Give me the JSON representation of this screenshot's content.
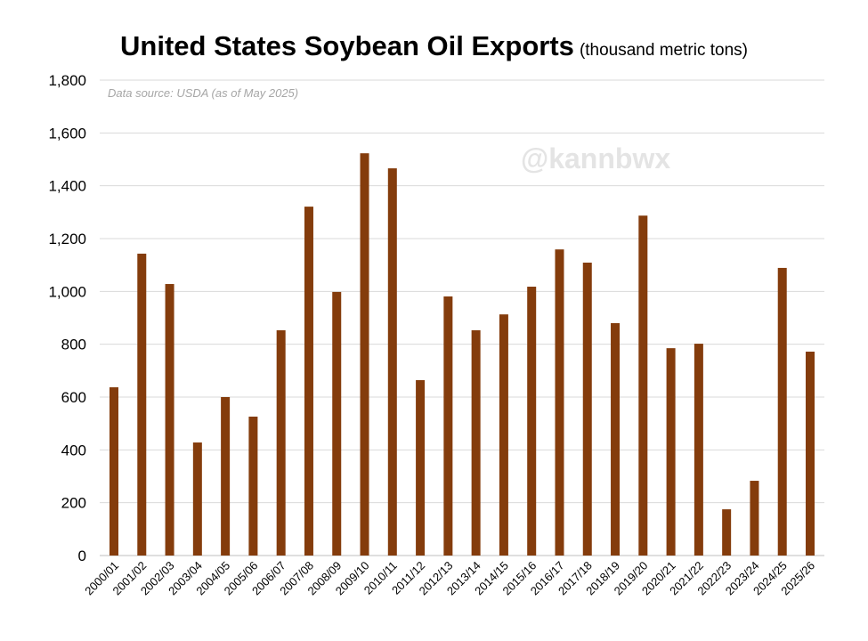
{
  "chart_data": {
    "type": "bar",
    "title": "United States Soybean Oil Exports",
    "unit_label": "(thousand metric tons)",
    "source_note": "Data source: USDA (as of May 2025)",
    "watermark": "@kannbwx",
    "xlabel": "",
    "ylabel": "",
    "ylim": [
      0,
      1800
    ],
    "yticks": [
      0,
      200,
      400,
      600,
      800,
      1000,
      1200,
      1400,
      1600,
      1800
    ],
    "ytick_labels": [
      "0",
      "200",
      "400",
      "600",
      "800",
      "1,000",
      "1,200",
      "1,400",
      "1,600",
      "1,800"
    ],
    "grid": true,
    "bar_color": "#843C0C",
    "categories": [
      "2000/01",
      "2001/02",
      "2002/03",
      "2003/04",
      "2004/05",
      "2005/06",
      "2006/07",
      "2007/08",
      "2008/09",
      "2009/10",
      "2010/11",
      "2011/12",
      "2012/13",
      "2013/14",
      "2014/15",
      "2015/16",
      "2016/17",
      "2017/18",
      "2018/19",
      "2019/20",
      "2020/21",
      "2021/22",
      "2022/23",
      "2023/24",
      "2024/25",
      "2025/26"
    ],
    "values": [
      637,
      1143,
      1028,
      428,
      600,
      526,
      853,
      1321,
      998,
      1523,
      1466,
      664,
      981,
      853,
      913,
      1018,
      1159,
      1109,
      880,
      1287,
      785,
      802,
      175,
      283,
      1089,
      772
    ]
  }
}
